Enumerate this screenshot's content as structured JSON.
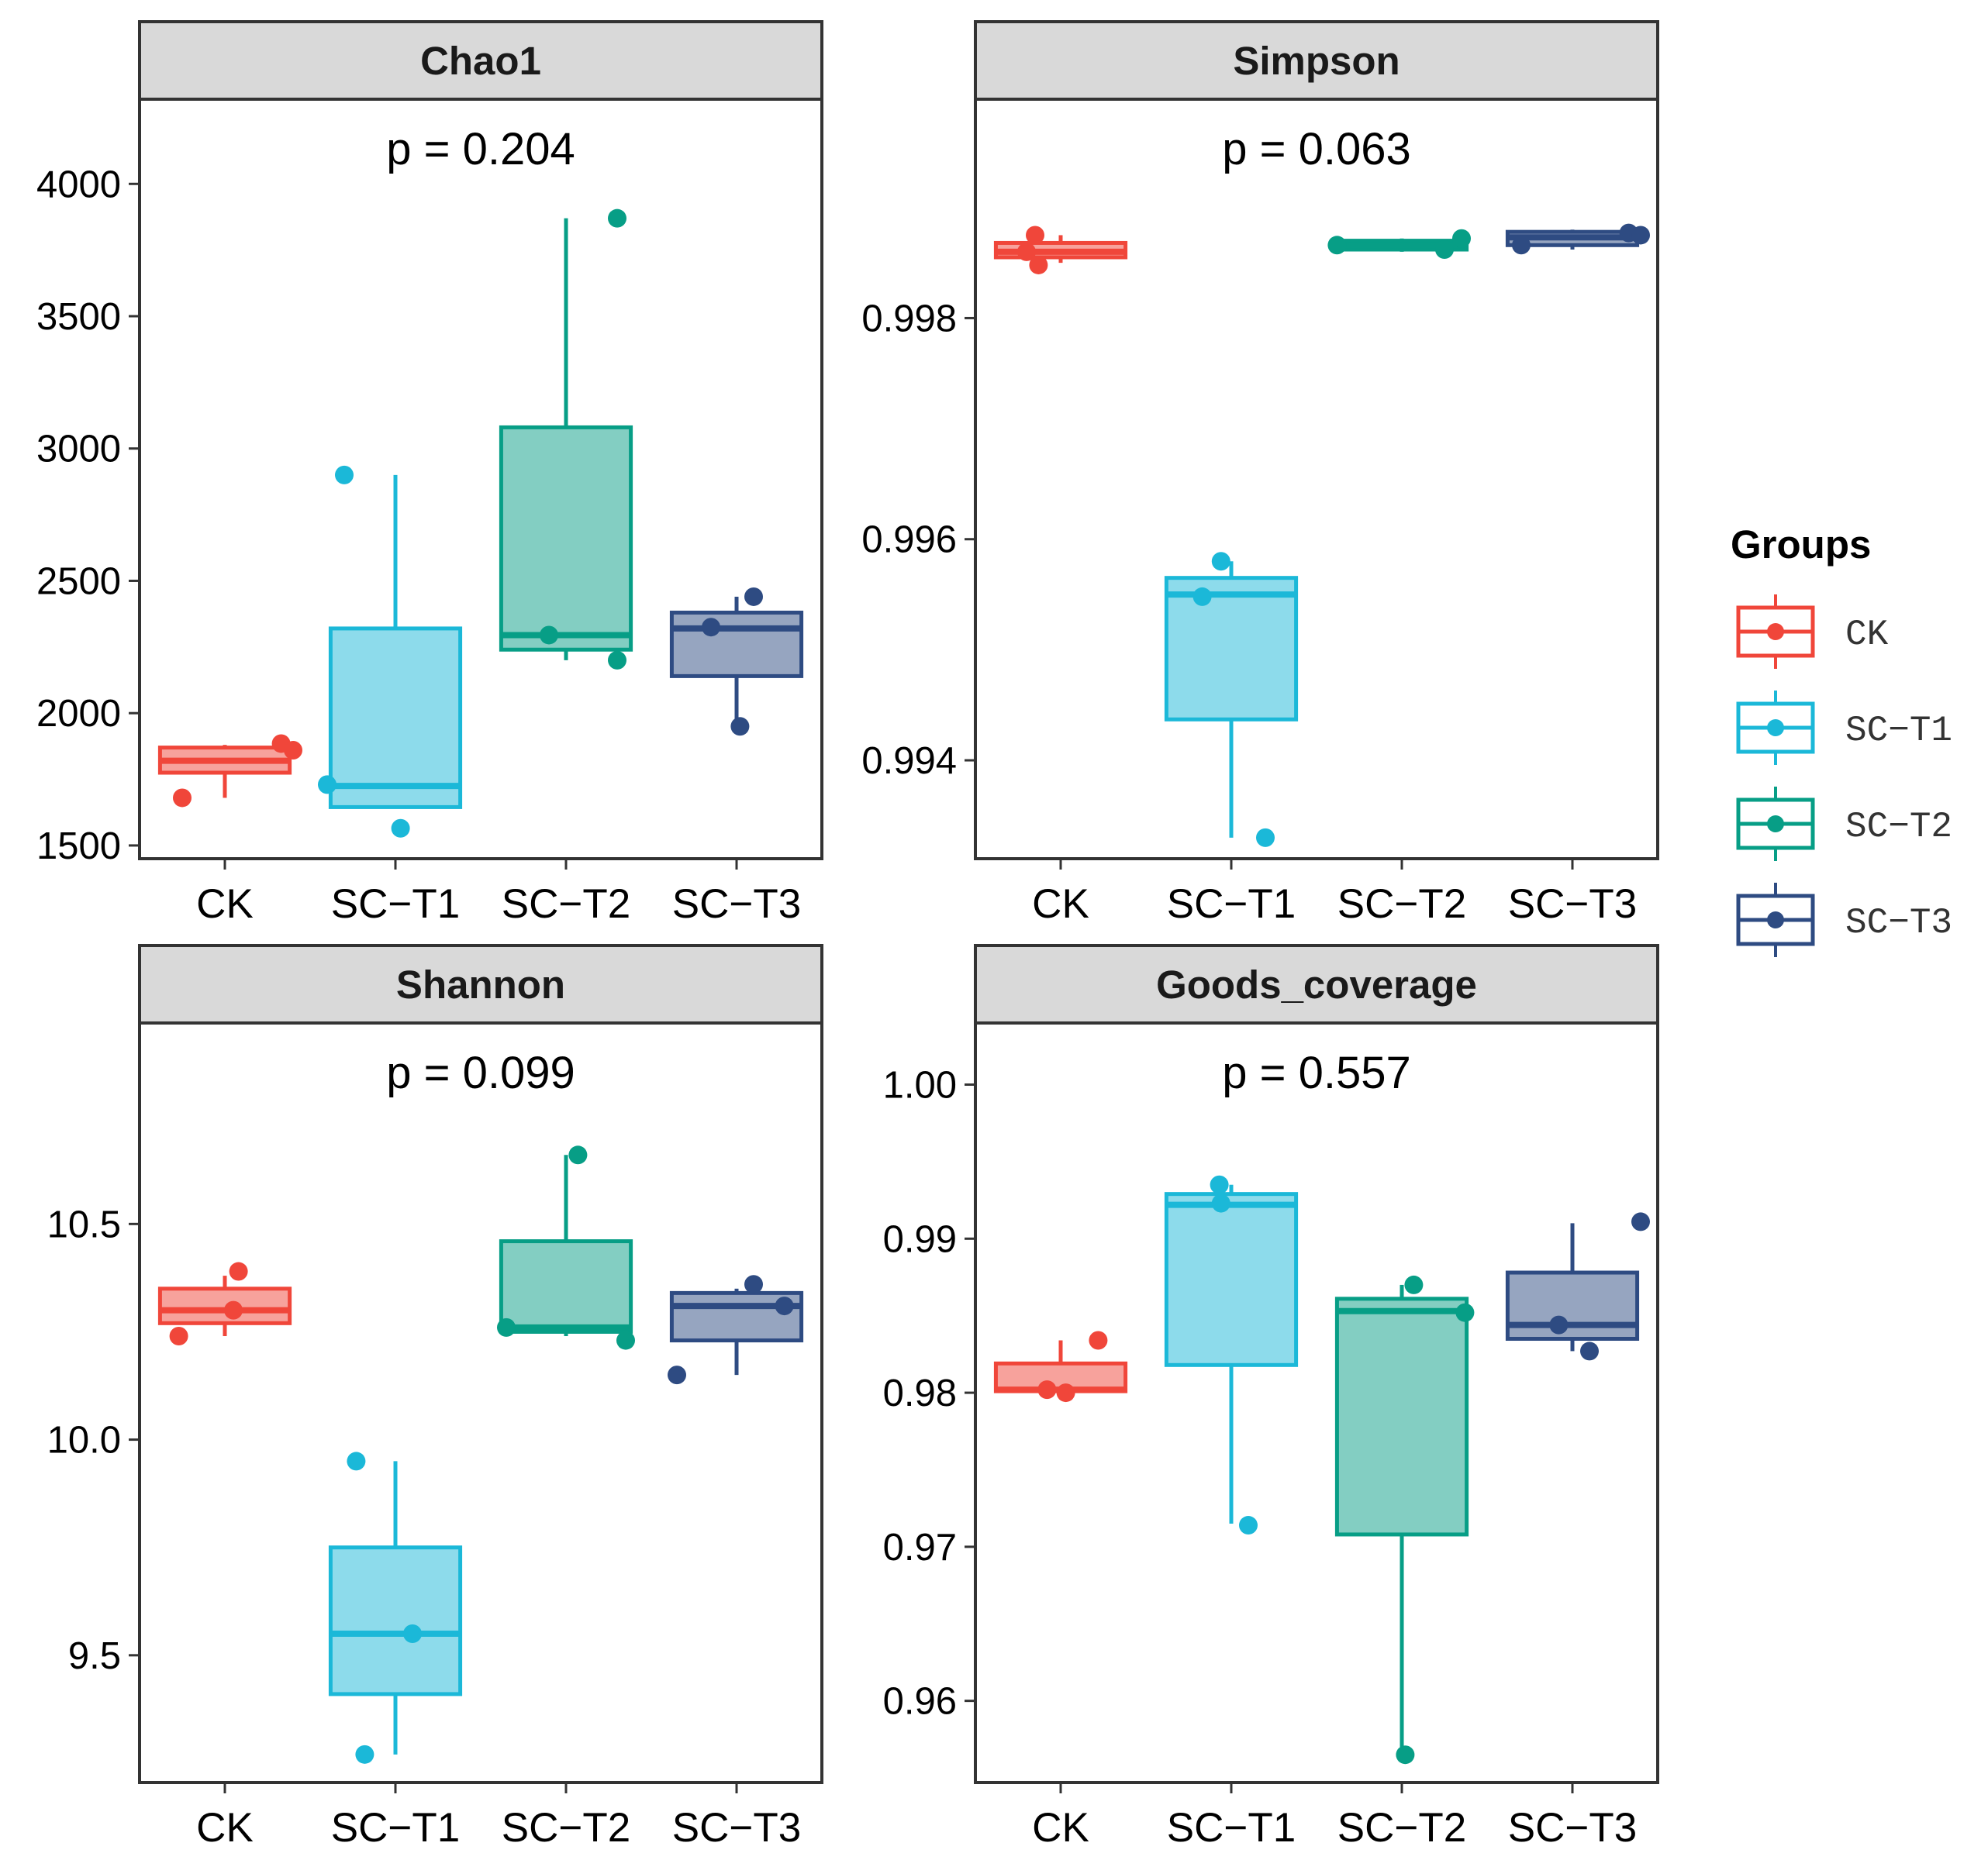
{
  "legend": {
    "title": "Groups",
    "items": [
      {
        "label": "CK",
        "color": "#F0463A"
      },
      {
        "label": "SC−T1",
        "color": "#1BB8D8"
      },
      {
        "label": "SC−T2",
        "color": "#079E86"
      },
      {
        "label": "SC−T3",
        "color": "#2E4B82"
      }
    ]
  },
  "chart_data": [
    {
      "type": "box",
      "title": "Chao1",
      "annotation": "p = 0.204",
      "categories": [
        "CK",
        "SC−T1",
        "SC−T2",
        "SC−T3"
      ],
      "ylim": [
        1450,
        4320
      ],
      "yticks": [
        {
          "v": 1500,
          "label": "1500"
        },
        {
          "v": 2000,
          "label": "2000"
        },
        {
          "v": 2500,
          "label": "2500"
        },
        {
          "v": 3000,
          "label": "3000"
        },
        {
          "v": 3500,
          "label": "3500"
        },
        {
          "v": 4000,
          "label": "4000"
        }
      ],
      "boxes": [
        {
          "q1": 1775,
          "median": 1820,
          "q3": 1870,
          "whislo": 1680,
          "whishi": 1880,
          "points": [
            {
              "v": 1680,
              "dx": -0.25
            },
            {
              "v": 1885,
              "dx": 0.33
            },
            {
              "v": 1860,
              "dx": 0.4
            }
          ]
        },
        {
          "q1": 1645,
          "median": 1725,
          "q3": 2320,
          "whislo": 1645,
          "whishi": 2900,
          "points": [
            {
              "v": 2900,
              "dx": -0.3
            },
            {
              "v": 1730,
              "dx": -0.4
            },
            {
              "v": 1565,
              "dx": 0.03
            }
          ]
        },
        {
          "q1": 2240,
          "median": 2295,
          "q3": 3080,
          "whislo": 2200,
          "whishi": 3870,
          "points": [
            {
              "v": 3870,
              "dx": 0.3
            },
            {
              "v": 2295,
              "dx": -0.1
            },
            {
              "v": 2200,
              "dx": 0.3
            }
          ]
        },
        {
          "q1": 2140,
          "median": 2320,
          "q3": 2380,
          "whislo": 1960,
          "whishi": 2440,
          "points": [
            {
              "v": 2440,
              "dx": 0.1
            },
            {
              "v": 2325,
              "dx": -0.15
            },
            {
              "v": 1950,
              "dx": 0.02
            }
          ]
        }
      ]
    },
    {
      "type": "box",
      "title": "Simpson",
      "annotation": "p = 0.063",
      "categories": [
        "CK",
        "SC−T1",
        "SC−T2",
        "SC−T3"
      ],
      "ylim": [
        0.99311,
        0.99998
      ],
      "yticks": [
        {
          "v": 0.994,
          "label": "0.994"
        },
        {
          "v": 0.996,
          "label": "0.996"
        },
        {
          "v": 0.998,
          "label": "0.998"
        }
      ],
      "boxes": [
        {
          "q1": 0.99855,
          "median": 0.9986,
          "q3": 0.99868,
          "whislo": 0.9985,
          "whishi": 0.99875,
          "points": [
            {
              "v": 0.99875,
              "dx": -0.15
            },
            {
              "v": 0.9986,
              "dx": -0.2
            },
            {
              "v": 0.99848,
              "dx": -0.13
            }
          ]
        },
        {
          "q1": 0.99437,
          "median": 0.9955,
          "q3": 0.99565,
          "whislo": 0.9933,
          "whishi": 0.9958,
          "points": [
            {
              "v": 0.9958,
              "dx": -0.06
            },
            {
              "v": 0.99548,
              "dx": -0.17
            },
            {
              "v": 0.9933,
              "dx": 0.2
            }
          ]
        },
        {
          "q1": 0.99862,
          "median": 0.99866,
          "q3": 0.9987,
          "whislo": 0.9986,
          "whishi": 0.99872,
          "points": [
            {
              "v": 0.99866,
              "dx": -0.38
            },
            {
              "v": 0.99862,
              "dx": 0.25
            },
            {
              "v": 0.99872,
              "dx": 0.35
            }
          ]
        },
        {
          "q1": 0.99866,
          "median": 0.99873,
          "q3": 0.99878,
          "whislo": 0.99862,
          "whishi": 0.9988,
          "points": [
            {
              "v": 0.99866,
              "dx": -0.3
            },
            {
              "v": 0.99877,
              "dx": 0.33
            },
            {
              "v": 0.99875,
              "dx": 0.4
            }
          ]
        }
      ]
    },
    {
      "type": "box",
      "title": "Shannon",
      "annotation": "p = 0.099",
      "categories": [
        "CK",
        "SC−T1",
        "SC−T2",
        "SC−T3"
      ],
      "ylim": [
        9.205,
        10.966
      ],
      "yticks": [
        {
          "v": 9.5,
          "label": "9.5"
        },
        {
          "v": 10.0,
          "label": "10.0"
        },
        {
          "v": 10.5,
          "label": "10.5"
        }
      ],
      "boxes": [
        {
          "q1": 10.27,
          "median": 10.3,
          "q3": 10.35,
          "whislo": 10.24,
          "whishi": 10.38,
          "points": [
            {
              "v": 10.24,
              "dx": -0.27
            },
            {
              "v": 10.3,
              "dx": 0.05
            },
            {
              "v": 10.39,
              "dx": 0.08
            }
          ]
        },
        {
          "q1": 9.41,
          "median": 9.55,
          "q3": 9.75,
          "whislo": 9.27,
          "whishi": 9.95,
          "points": [
            {
              "v": 9.95,
              "dx": -0.23
            },
            {
              "v": 9.55,
              "dx": 0.1
            },
            {
              "v": 9.27,
              "dx": -0.18
            }
          ]
        },
        {
          "q1": 10.25,
          "median": 10.26,
          "q3": 10.46,
          "whislo": 10.24,
          "whishi": 10.66,
          "points": [
            {
              "v": 10.66,
              "dx": 0.07
            },
            {
              "v": 10.26,
              "dx": -0.35
            },
            {
              "v": 10.23,
              "dx": 0.35
            }
          ]
        },
        {
          "q1": 10.23,
          "median": 10.31,
          "q3": 10.34,
          "whislo": 10.15,
          "whishi": 10.35,
          "points": [
            {
              "v": 10.36,
              "dx": 0.1
            },
            {
              "v": 10.31,
              "dx": 0.28
            },
            {
              "v": 10.15,
              "dx": -0.35
            }
          ]
        }
      ]
    },
    {
      "type": "box",
      "title": "Goods_coverage",
      "annotation": "p = 0.557",
      "categories": [
        "CK",
        "SC−T1",
        "SC−T2",
        "SC−T3"
      ],
      "ylim": [
        0.9547,
        1.004
      ],
      "yticks": [
        {
          "v": 0.96,
          "label": "0.96"
        },
        {
          "v": 0.97,
          "label": "0.97"
        },
        {
          "v": 0.98,
          "label": "0.98"
        },
        {
          "v": 0.99,
          "label": "0.99"
        },
        {
          "v": 1.0,
          "label": "1.00"
        }
      ],
      "boxes": [
        {
          "q1": 0.9801,
          "median": 0.9802,
          "q3": 0.9819,
          "whislo": 0.98,
          "whishi": 0.9834,
          "points": [
            {
              "v": 0.9834,
              "dx": 0.22
            },
            {
              "v": 0.9802,
              "dx": -0.08
            },
            {
              "v": 0.98,
              "dx": 0.03
            }
          ]
        },
        {
          "q1": 0.9818,
          "median": 0.9922,
          "q3": 0.9929,
          "whislo": 0.9715,
          "whishi": 0.9935,
          "points": [
            {
              "v": 0.9935,
              "dx": -0.07
            },
            {
              "v": 0.9923,
              "dx": -0.06
            },
            {
              "v": 0.9714,
              "dx": 0.1
            }
          ]
        },
        {
          "q1": 0.9708,
          "median": 0.9853,
          "q3": 0.9861,
          "whislo": 0.9565,
          "whishi": 0.987,
          "points": [
            {
              "v": 0.987,
              "dx": 0.07
            },
            {
              "v": 0.9852,
              "dx": 0.37
            },
            {
              "v": 0.9565,
              "dx": 0.02
            }
          ]
        },
        {
          "q1": 0.9835,
          "median": 0.9844,
          "q3": 0.9878,
          "whislo": 0.9827,
          "whishi": 0.991,
          "points": [
            {
              "v": 0.9911,
              "dx": 0.4
            },
            {
              "v": 0.9844,
              "dx": -0.08
            },
            {
              "v": 0.9827,
              "dx": 0.1
            }
          ]
        }
      ]
    }
  ]
}
